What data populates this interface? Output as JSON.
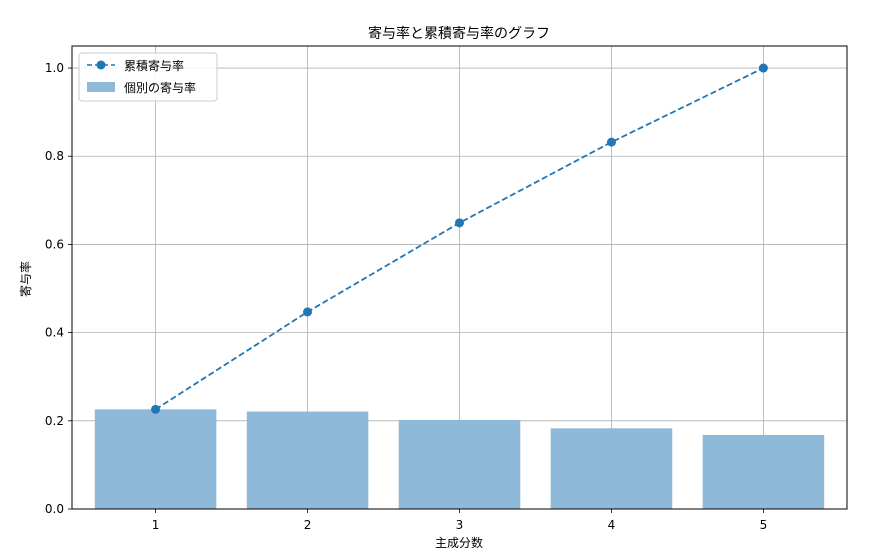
{
  "chart_data": {
    "type": "bar",
    "title": "寄与率と累積寄与率のグラフ",
    "xlabel": "主成分数",
    "ylabel": "寄与率",
    "categories": [
      "1",
      "2",
      "3",
      "4",
      "5"
    ],
    "x": [
      1,
      2,
      3,
      4,
      5
    ],
    "xlim": [
      0.45,
      5.55
    ],
    "ylim": [
      0.0,
      1.05
    ],
    "yticks": [
      0.0,
      0.2,
      0.4,
      0.6,
      0.8,
      1.0
    ],
    "ytick_labels": [
      "0.0",
      "0.2",
      "0.4",
      "0.6",
      "0.8",
      "1.0"
    ],
    "grid": true,
    "legend_position": "top-left",
    "series": [
      {
        "name": "累積寄与率",
        "type": "line",
        "style": "dashed-with-markers",
        "color": "#1f77b4",
        "values": [
          0.226,
          0.447,
          0.649,
          0.832,
          1.0
        ]
      },
      {
        "name": "個別の寄与率",
        "type": "bar",
        "color": "#8fb9d9",
        "values": [
          0.226,
          0.221,
          0.202,
          0.183,
          0.168
        ]
      }
    ]
  }
}
